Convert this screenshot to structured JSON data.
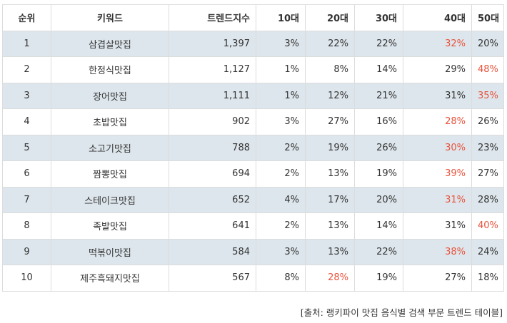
{
  "table": {
    "headers": [
      "순위",
      "키워드",
      "트렌드지수",
      "10대",
      "20대",
      "30대",
      "40대",
      "50대"
    ],
    "rows": [
      {
        "rank": "1",
        "keyword": "삼겹살맛집",
        "index": "1,397",
        "a10": "3%",
        "a20": "22%",
        "a30": "22%",
        "a40": "32%",
        "a50": "20%",
        "highlight": [
          "a40"
        ]
      },
      {
        "rank": "2",
        "keyword": "한정식맛집",
        "index": "1,127",
        "a10": "1%",
        "a20": "8%",
        "a30": "14%",
        "a40": "29%",
        "a50": "48%",
        "highlight": [
          "a50"
        ]
      },
      {
        "rank": "3",
        "keyword": "장어맛집",
        "index": "1,111",
        "a10": "1%",
        "a20": "12%",
        "a30": "21%",
        "a40": "31%",
        "a50": "35%",
        "highlight": [
          "a50"
        ]
      },
      {
        "rank": "4",
        "keyword": "초밥맛집",
        "index": "902",
        "a10": "3%",
        "a20": "27%",
        "a30": "16%",
        "a40": "28%",
        "a50": "26%",
        "highlight": [
          "a40"
        ]
      },
      {
        "rank": "5",
        "keyword": "소고기맛집",
        "index": "788",
        "a10": "2%",
        "a20": "19%",
        "a30": "26%",
        "a40": "30%",
        "a50": "23%",
        "highlight": [
          "a40"
        ]
      },
      {
        "rank": "6",
        "keyword": "짬뽕맛집",
        "index": "694",
        "a10": "2%",
        "a20": "13%",
        "a30": "19%",
        "a40": "39%",
        "a50": "27%",
        "highlight": [
          "a40"
        ]
      },
      {
        "rank": "7",
        "keyword": "스테이크맛집",
        "index": "652",
        "a10": "4%",
        "a20": "17%",
        "a30": "20%",
        "a40": "31%",
        "a50": "28%",
        "highlight": [
          "a40"
        ]
      },
      {
        "rank": "8",
        "keyword": "족발맛집",
        "index": "641",
        "a10": "2%",
        "a20": "13%",
        "a30": "14%",
        "a40": "31%",
        "a50": "40%",
        "highlight": [
          "a50"
        ]
      },
      {
        "rank": "9",
        "keyword": "떡볶이맛집",
        "index": "584",
        "a10": "3%",
        "a20": "13%",
        "a30": "22%",
        "a40": "38%",
        "a50": "24%",
        "highlight": [
          "a40"
        ]
      },
      {
        "rank": "10",
        "keyword": "제주흑돼지맛집",
        "index": "567",
        "a10": "8%",
        "a20": "28%",
        "a30": "19%",
        "a40": "27%",
        "a50": "18%",
        "highlight": [
          "a20"
        ]
      }
    ]
  },
  "source": "[출처: 랭키파이 맛집 음식별 검색 부문 트렌드 테이블]",
  "colors": {
    "highlight": "#e8533c",
    "stripe": "#dde6ec",
    "border": "#dcdcdc"
  }
}
